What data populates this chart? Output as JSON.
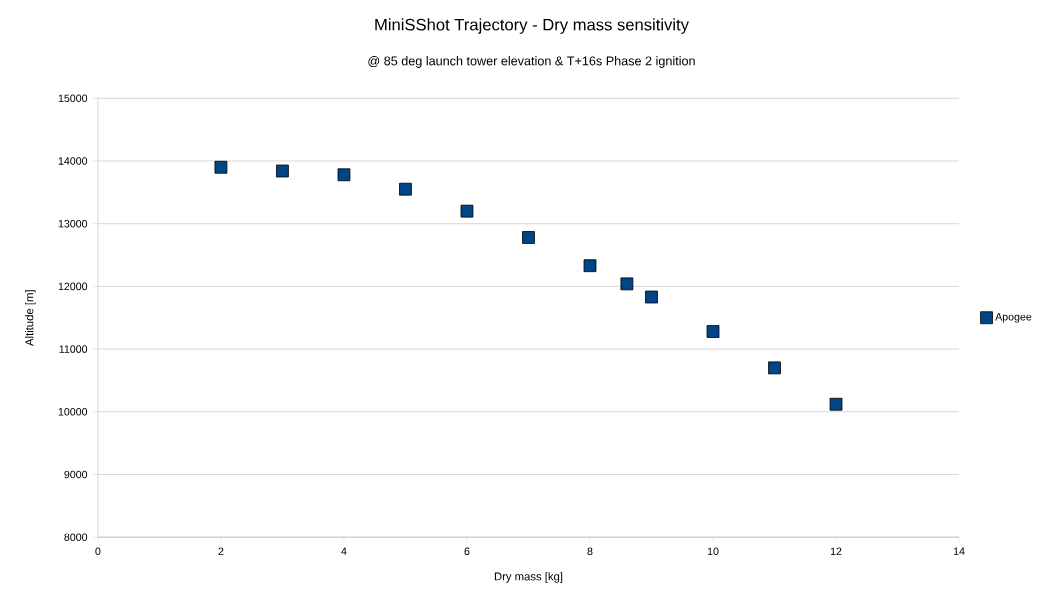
{
  "chart_data": {
    "type": "scatter",
    "title": "MiniSShot Trajectory - Dry mass sensitivity",
    "subtitle": "@ 85 deg launch tower elevation & T+16s Phase 2 ignition",
    "xlabel": "Dry mass [kg]",
    "ylabel": "Altitude [m]",
    "x": [
      2,
      3,
      4,
      5,
      6,
      7,
      8,
      8.6,
      9,
      10,
      11,
      12
    ],
    "series": [
      {
        "name": "Apogee",
        "color": "#004586",
        "values": [
          13900,
          13840,
          13780,
          13550,
          13200,
          12780,
          12330,
          12040,
          11830,
          11280,
          10700,
          10120
        ]
      }
    ],
    "xlim": [
      0,
      14
    ],
    "ylim": [
      8000,
      15000
    ],
    "xticks": [
      0,
      2,
      4,
      6,
      8,
      10,
      12,
      14
    ],
    "yticks": [
      8000,
      9000,
      10000,
      11000,
      12000,
      13000,
      14000,
      15000
    ],
    "grid": "y",
    "legend": "right",
    "marker": "square"
  }
}
